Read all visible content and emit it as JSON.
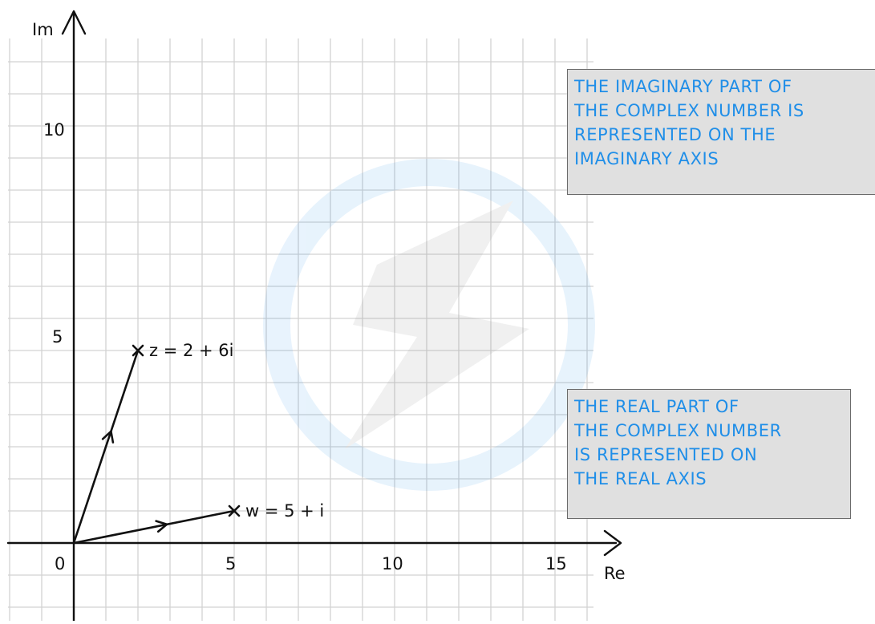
{
  "diagram": {
    "axes": {
      "x_label": "Re",
      "y_label": "Im",
      "x_ticks": [
        "5",
        "10",
        "15"
      ],
      "y_ticks": [
        "5",
        "10"
      ],
      "origin_label": "0",
      "x_range": [
        -2,
        16
      ],
      "y_range": [
        -1.5,
        12
      ]
    },
    "points": [
      {
        "name": "z",
        "label": "z = 2 + 6i",
        "re": 2,
        "im": 6
      },
      {
        "name": "w",
        "label": "w = 5 + i",
        "re": 5,
        "im": 1
      }
    ],
    "callouts": {
      "imaginary": [
        "THE IMAGINARY PART OF",
        "THE COMPLEX NUMBER IS",
        "REPRESENTED ON THE",
        "IMAGINARY AXIS"
      ],
      "real": [
        "THE REAL PART OF",
        "THE COMPLEX NUMBER",
        "IS REPRESENTED ON",
        "THE REAL AXIS"
      ]
    },
    "colors": {
      "callout_text": "#1f8ee8",
      "callout_bg": "#e0e0e0",
      "grid": "#d2d2d2",
      "ink": "#111111"
    }
  }
}
